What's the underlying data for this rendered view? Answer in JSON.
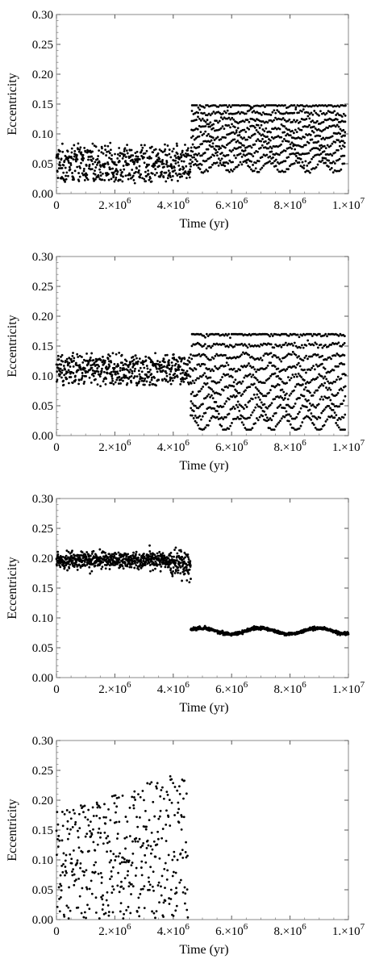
{
  "chart_data": [
    {
      "type": "scatter",
      "xlabel": "Time (yr)",
      "ylabel": "Eccentricity",
      "xlim": [
        0,
        10000000
      ],
      "ylim": [
        0,
        0.3
      ],
      "xticks": [
        0,
        2000000,
        4000000,
        6000000,
        8000000,
        10000000
      ],
      "xtick_labels": [
        {
          "m": "",
          "e": "",
          "plain": "0"
        },
        {
          "m": "2.×10",
          "e": "6"
        },
        {
          "m": "4.×10",
          "e": "6"
        },
        {
          "m": "6.×10",
          "e": "6"
        },
        {
          "m": "8.×10",
          "e": "6"
        },
        {
          "m": "1.×10",
          "e": "7"
        }
      ],
      "yticks": [
        0,
        0.05,
        0.1,
        0.15,
        0.2,
        0.25,
        0.3
      ],
      "ytick_labels": [
        "0.00",
        "0.05",
        "0.10",
        "0.15",
        "0.20",
        "0.25",
        "0.30"
      ],
      "grid": false,
      "segments": [
        {
          "kind": "noisy",
          "x": [
            0,
            4600000
          ],
          "center": 0.05,
          "spread": 0.035,
          "count": 520
        },
        {
          "kind": "envelope",
          "x": [
            4600000,
            9900000
          ],
          "low": 0.045,
          "high": 0.148,
          "period": 900000,
          "count": 900
        }
      ]
    },
    {
      "type": "scatter",
      "xlabel": "Time (yr)",
      "ylabel": "Eccentricity",
      "xlim": [
        0,
        10000000
      ],
      "ylim": [
        0,
        0.3
      ],
      "xticks": [
        0,
        2000000,
        4000000,
        6000000,
        8000000,
        10000000
      ],
      "xtick_labels": [
        {
          "m": "",
          "e": "",
          "plain": "0"
        },
        {
          "m": "2.×10",
          "e": "6"
        },
        {
          "m": "4.×10",
          "e": "6"
        },
        {
          "m": "6.×10",
          "e": "6"
        },
        {
          "m": "8.×10",
          "e": "6"
        },
        {
          "m": "1.×10",
          "e": "7"
        }
      ],
      "yticks": [
        0,
        0.05,
        0.1,
        0.15,
        0.2,
        0.25,
        0.3
      ],
      "ytick_labels": [
        "0.00",
        "0.05",
        "0.10",
        "0.15",
        "0.20",
        "0.25",
        "0.30"
      ],
      "grid": false,
      "segments": [
        {
          "kind": "noisy",
          "x": [
            0,
            4600000
          ],
          "center": 0.11,
          "spread": 0.03,
          "count": 520
        },
        {
          "kind": "envelope",
          "x": [
            4600000,
            9900000
          ],
          "low": 0.02,
          "high": 0.17,
          "period": 800000,
          "count": 950
        }
      ]
    },
    {
      "type": "scatter",
      "xlabel": "Time (yr)",
      "ylabel": "Eccentricity",
      "xlim": [
        0,
        10000000
      ],
      "ylim": [
        0,
        0.3
      ],
      "xticks": [
        0,
        2000000,
        4000000,
        6000000,
        8000000,
        10000000
      ],
      "xtick_labels": [
        {
          "m": "",
          "e": "",
          "plain": "0"
        },
        {
          "m": "2.×10",
          "e": "6"
        },
        {
          "m": "4.×10",
          "e": "6"
        },
        {
          "m": "6.×10",
          "e": "6"
        },
        {
          "m": "8.×10",
          "e": "6"
        },
        {
          "m": "1.×10",
          "e": "7"
        }
      ],
      "yticks": [
        0,
        0.05,
        0.1,
        0.15,
        0.2,
        0.25,
        0.3
      ],
      "ytick_labels": [
        "0.00",
        "0.05",
        "0.10",
        "0.15",
        "0.20",
        "0.25",
        "0.30"
      ],
      "grid": false,
      "segments": [
        {
          "kind": "band",
          "x": [
            0,
            4600000
          ],
          "center": 0.197,
          "spread": 0.007,
          "count": 700
        },
        {
          "kind": "wave",
          "x": [
            4600000,
            10000000
          ],
          "center": 0.078,
          "amp": 0.005,
          "period": 2000000,
          "count": 700
        }
      ]
    },
    {
      "type": "scatter",
      "xlabel": "Time (yr)",
      "ylabel": "Eccentricity",
      "xlim": [
        0,
        10000000
      ],
      "ylim": [
        0,
        0.3
      ],
      "xticks": [
        0,
        2000000,
        4000000,
        6000000,
        8000000,
        10000000
      ],
      "xtick_labels": [
        {
          "m": "",
          "e": "",
          "plain": "0"
        },
        {
          "m": "2.×10",
          "e": "6"
        },
        {
          "m": "4.×10",
          "e": "6"
        },
        {
          "m": "6.×10",
          "e": "6"
        },
        {
          "m": "8.×10",
          "e": "6"
        },
        {
          "m": "1.×10",
          "e": "7"
        }
      ],
      "yticks": [
        0,
        0.05,
        0.1,
        0.15,
        0.2,
        0.25,
        0.3
      ],
      "ytick_labels": [
        "0.00",
        "0.05",
        "0.10",
        "0.15",
        "0.20",
        "0.25",
        "0.30"
      ],
      "grid": false,
      "segments": [
        {
          "kind": "scatter-rising",
          "x": [
            0,
            4500000
          ],
          "start_max": 0.18,
          "end_max": 0.25,
          "count": 420
        }
      ]
    }
  ]
}
